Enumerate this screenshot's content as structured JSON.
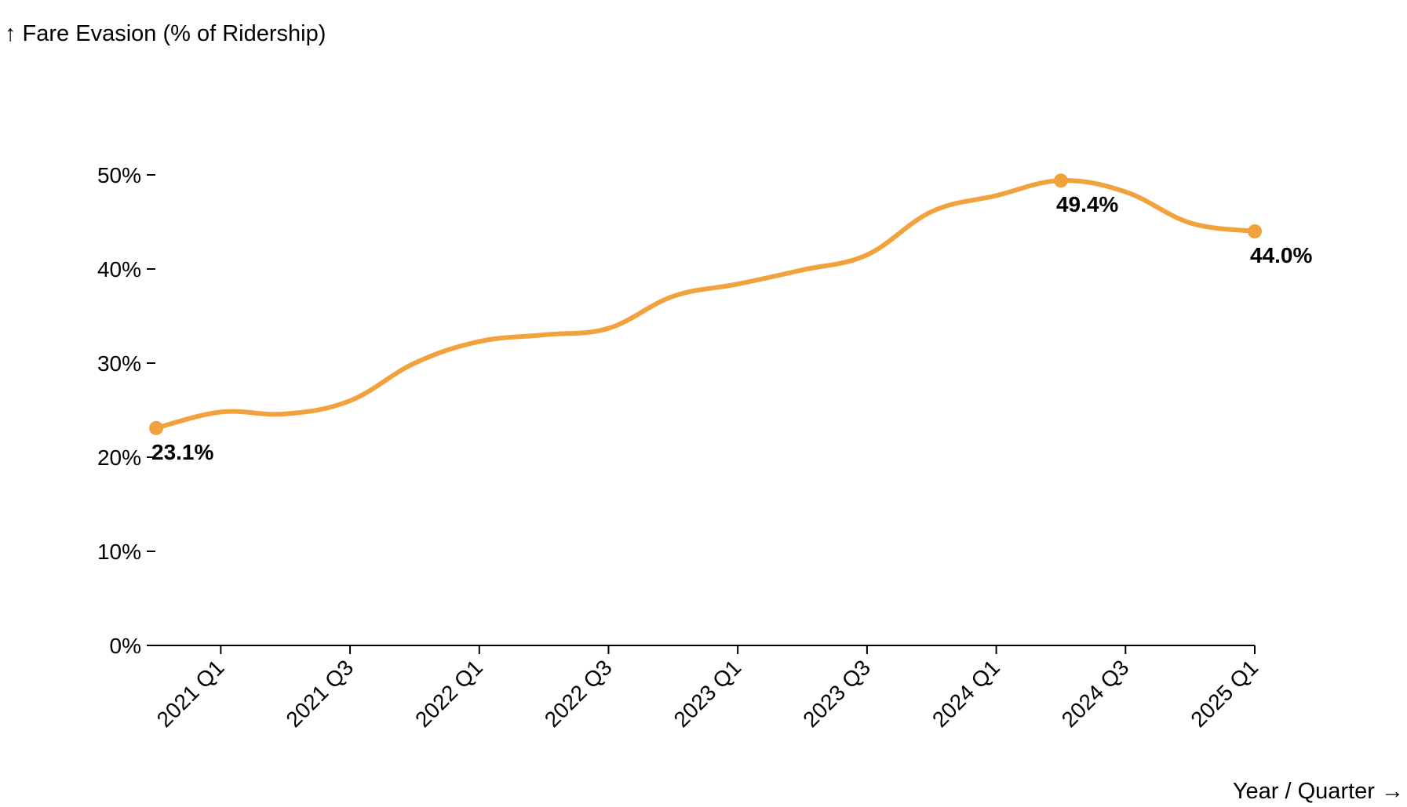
{
  "chart_data": {
    "type": "line",
    "title": "",
    "ylabel": "↑ Fare Evasion (% of Ridership)",
    "xlabel": "Year / Quarter →",
    "ylim": [
      0,
      50
    ],
    "y_ticks": [
      "0%",
      "10%",
      "20%",
      "30%",
      "40%",
      "50%"
    ],
    "y_tick_values": [
      0,
      10,
      20,
      30,
      40,
      50
    ],
    "x_tick_labels": [
      "2021 Q1",
      "2021 Q3",
      "2022 Q1",
      "2022 Q3",
      "2023 Q1",
      "2023 Q3",
      "2024 Q1",
      "2024 Q3",
      "2025 Q1"
    ],
    "x": [
      "2020 Q4",
      "2021 Q1",
      "2021 Q2",
      "2021 Q3",
      "2021 Q4",
      "2022 Q1",
      "2022 Q2",
      "2022 Q3",
      "2022 Q4",
      "2023 Q1",
      "2023 Q2",
      "2023 Q3",
      "2023 Q4",
      "2024 Q1",
      "2024 Q2",
      "2024 Q3",
      "2024 Q4",
      "2025 Q1"
    ],
    "series": [
      {
        "name": "",
        "color": "#f2a23c",
        "values": [
          23.1,
          24.8,
          24.6,
          26.0,
          30.0,
          32.3,
          33.0,
          33.7,
          37.1,
          38.4,
          39.9,
          41.5,
          46.1,
          47.8,
          49.4,
          48.2,
          44.9,
          44.0
        ]
      }
    ],
    "annotations": [
      {
        "x": "2020 Q4",
        "value": 23.1,
        "label": "23.1%"
      },
      {
        "x": "2024 Q2",
        "value": 49.4,
        "label": "49.4%"
      },
      {
        "x": "2025 Q1",
        "value": 44.0,
        "label": "44.0%"
      }
    ],
    "grid": false,
    "legend": "none"
  }
}
